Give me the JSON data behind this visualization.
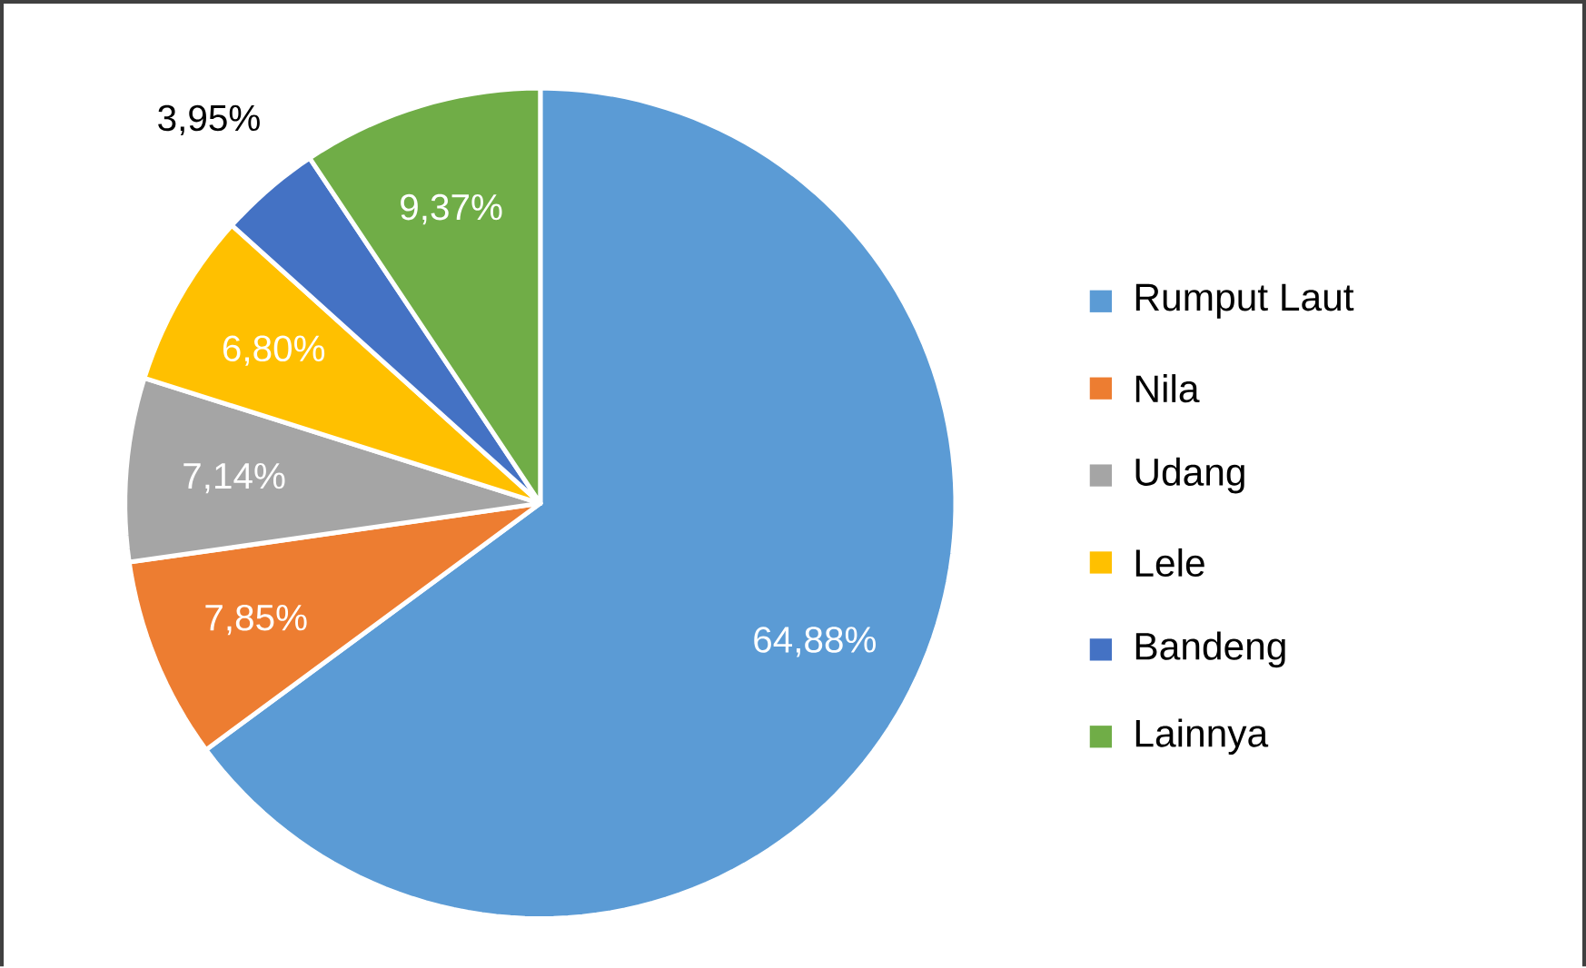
{
  "chart_data": {
    "type": "pie",
    "categories": [
      "Rumput Laut",
      "Nila",
      "Udang",
      "Lele",
      "Bandeng",
      "Lainnya"
    ],
    "values": [
      64.88,
      7.85,
      7.14,
      6.8,
      3.95,
      9.37
    ],
    "colors": [
      "#5b9bd5",
      "#ed7d31",
      "#a5a5a5",
      "#ffc000",
      "#4472c4",
      "#70ad47"
    ],
    "value_labels": [
      "64,88%",
      "7,85%",
      "7,14%",
      "6,80%",
      "3,95%",
      "9,37%"
    ],
    "legend": "right"
  }
}
